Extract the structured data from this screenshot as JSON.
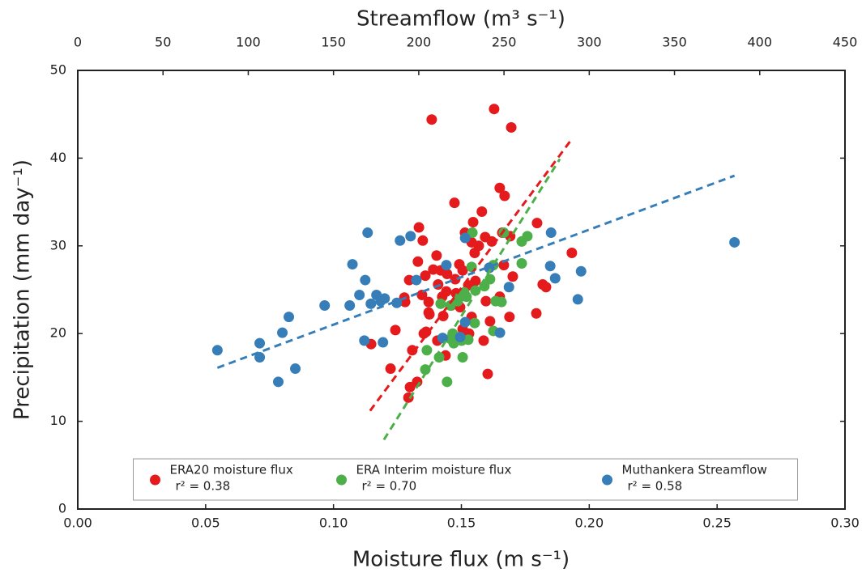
{
  "chart_data": {
    "type": "scatter",
    "x_label": "Moisture flux (m s⁻¹)",
    "x2_label": "Streamflow (m³ s⁻¹)",
    "y_label": "Precipitation (mm day⁻¹)",
    "xlim": [
      0,
      0.3
    ],
    "xticks": [
      {
        "value": 0,
        "label": "0.00"
      },
      {
        "value": 0.05,
        "label": "0.05"
      },
      {
        "value": 0.1,
        "label": "0.10"
      },
      {
        "value": 0.15,
        "label": "0.15"
      },
      {
        "value": 0.2,
        "label": "0.20"
      },
      {
        "value": 0.25,
        "label": "0.25"
      },
      {
        "value": 0.3,
        "label": "0.30"
      }
    ],
    "x2lim": [
      0,
      450
    ],
    "x2ticks": [
      0,
      50,
      100,
      150,
      200,
      250,
      300,
      350,
      400,
      450
    ],
    "ylim": [
      0,
      50
    ],
    "yticks": [
      0,
      10,
      20,
      30,
      40,
      50
    ],
    "legend": "lower center",
    "series": [
      {
        "name": "ERA20 moisture flux",
        "r2_label": "r² = 0.38",
        "color": "#e41a1c",
        "axis": "x",
        "x": [
          0.1384,
          0.1628,
          0.1695,
          0.165,
          0.1669,
          0.1473,
          0.158,
          0.1796,
          0.1334,
          0.1546,
          0.1514,
          0.1593,
          0.166,
          0.1691,
          0.1349,
          0.1619,
          0.154,
          0.1568,
          0.1932,
          0.1403,
          0.1552,
          0.133,
          0.1492,
          0.1609,
          0.1666,
          0.1701,
          0.139,
          0.1419,
          0.1444,
          0.1505,
          0.1359,
          0.1296,
          0.1555,
          0.1476,
          0.1818,
          0.1831,
          0.1409,
          0.1527,
          0.1441,
          0.1479,
          0.1346,
          0.1277,
          0.128,
          0.1372,
          0.1425,
          0.146,
          0.1495,
          0.165,
          0.1596,
          0.1372,
          0.1375,
          0.1429,
          0.1793,
          0.1688,
          0.1612,
          0.154,
          0.1362,
          0.1353,
          0.1505,
          0.1242,
          0.1489,
          0.1406,
          0.1587,
          0.1147,
          0.153,
          0.1308,
          0.1223,
          0.1603,
          0.1327,
          0.1299,
          0.1293,
          0.1438
        ],
        "y": [
          44.4,
          45.6,
          43.5,
          36.6,
          35.7,
          34.9,
          33.9,
          32.6,
          32.1,
          32.7,
          31.5,
          31.0,
          31.5,
          31.1,
          30.6,
          30.5,
          30.4,
          30.0,
          29.2,
          28.9,
          29.2,
          28.2,
          27.9,
          27.5,
          27.8,
          26.5,
          27.3,
          27.2,
          26.8,
          27.2,
          26.6,
          26.1,
          26.0,
          26.2,
          25.6,
          25.3,
          25.6,
          25.5,
          24.8,
          24.6,
          24.4,
          24.1,
          23.6,
          23.6,
          24.2,
          23.2,
          23.0,
          24.2,
          23.7,
          22.4,
          22.2,
          22.0,
          22.3,
          21.9,
          21.4,
          21.9,
          20.2,
          20.0,
          20.5,
          20.4,
          19.5,
          19.2,
          19.2,
          18.8,
          20.0,
          18.1,
          16.0,
          15.4,
          14.5,
          13.9,
          12.7,
          17.5
        ],
        "trend": {
          "x": [
            0.1143,
            0.1935
          ],
          "y": [
            11.2,
            42.3
          ]
        }
      },
      {
        "name": "ERA Interim moisture flux",
        "r2_label": "r² = 0.70",
        "color": "#4daf4a",
        "axis": "x",
        "x": [
          0.1543,
          0.1736,
          0.1758,
          0.1666,
          0.1625,
          0.154,
          0.1736,
          0.1612,
          0.159,
          0.1511,
          0.1555,
          0.1495,
          0.1486,
          0.152,
          0.1419,
          0.1634,
          0.1657,
          0.1457,
          0.1552,
          0.1466,
          0.1457,
          0.1527,
          0.1501,
          0.147,
          0.1365,
          0.1413,
          0.1505,
          0.1359,
          0.1444,
          0.1625
        ],
        "y": [
          31.5,
          30.5,
          31.1,
          31.5,
          27.8,
          27.6,
          28.0,
          26.2,
          25.4,
          24.7,
          24.9,
          24.2,
          23.7,
          24.2,
          23.4,
          23.7,
          23.6,
          23.2,
          21.2,
          20.0,
          19.4,
          19.3,
          19.2,
          18.9,
          18.1,
          17.3,
          17.3,
          15.9,
          14.5,
          20.3
        ],
        "trend": {
          "x": [
            0.1197,
            0.1885
          ],
          "y": [
            7.9,
            39.9
          ]
        }
      },
      {
        "name": "Muthankera Streamflow",
        "r2_label": "r² = 0.58",
        "color": "#377eb8",
        "axis": "x2",
        "x": [
          81.9,
          106.7,
          106.7,
          120.0,
          123.8,
          117.6,
          127.6,
          144.8,
          159.5,
          161.1,
          165.2,
          168.6,
          170.0,
          171.9,
          168.1,
          175.2,
          177.6,
          180.0,
          179.0,
          187.1,
          189.0,
          195.2,
          198.6,
          216.2,
          214.0,
          224.3,
          227.2,
          227.2,
          241.4,
          247.6,
          252.9,
          280.0,
          277.6,
          277.1,
          293.3,
          295.2,
          385.2
        ],
        "y": [
          18.1,
          18.9,
          17.3,
          20.1,
          21.9,
          14.5,
          16.0,
          23.2,
          23.2,
          27.9,
          24.4,
          26.1,
          31.5,
          23.4,
          19.2,
          24.4,
          23.7,
          24.0,
          19.0,
          23.5,
          30.6,
          31.1,
          26.1,
          27.8,
          19.5,
          19.6,
          21.3,
          30.9,
          27.5,
          20.1,
          25.3,
          26.3,
          31.5,
          27.7,
          23.9,
          27.1,
          30.4
        ],
        "trend": {
          "x": [
            81.9,
            385.2
          ],
          "y": [
            16.1,
            38.0
          ]
        }
      }
    ]
  }
}
